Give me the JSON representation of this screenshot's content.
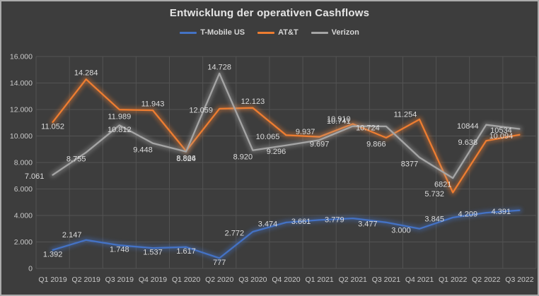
{
  "chart_data": {
    "type": "line",
    "title": "Entwicklung der operativen Cashflows",
    "categories": [
      "Q1 2019",
      "Q2 2019",
      "Q3 2019",
      "Q4 2019",
      "Q1 2020",
      "Q2 2020",
      "Q3 2020",
      "Q4 2020",
      "Q1 2021",
      "Q2 2021",
      "Q3 2021",
      "Q4 2021",
      "Q1 2022",
      "Q2 2022",
      "Q3 2022"
    ],
    "y_axis": {
      "min": 0,
      "max": 16000,
      "step": 2000,
      "tick_labels": [
        "0",
        "2.000",
        "4.000",
        "6.000",
        "8.000",
        "10.000",
        "12.000",
        "14.000",
        "16.000"
      ]
    },
    "grid": true,
    "legend_position": "top",
    "series": [
      {
        "name": "T-Mobile US",
        "color": "#4472C4",
        "values": [
          1392,
          2147,
          1748,
          1537,
          1617,
          777,
          2772,
          3474,
          3661,
          3779,
          3477,
          3000,
          3845,
          4209,
          4391
        ],
        "labels": [
          "1.392",
          "2.147",
          "1.748",
          "1.537",
          "1.617",
          "777",
          "2.772",
          "3.474",
          "3.661",
          "3.779",
          "3.477",
          "3.000",
          "3.845",
          "4.209",
          "4.391"
        ],
        "label_pos": [
          "c",
          "al",
          "c",
          "c",
          "c",
          "c",
          "l",
          "l",
          "l",
          "l",
          "l",
          "l",
          "l",
          "l",
          "l"
        ]
      },
      {
        "name": "AT&T",
        "color": "#ED7D31",
        "values": [
          11052,
          14284,
          11989,
          11943,
          8866,
          12059,
          12123,
          10065,
          9937,
          10910,
          9866,
          11254,
          5732,
          9638,
          10094
        ],
        "labels": [
          "11.052",
          "14.284",
          "11.989",
          "11.943",
          "8.866",
          "12.059",
          "12.123",
          "10.065",
          "9.937",
          "10.910",
          "9.866",
          "11.254",
          "5.732",
          "9.638",
          "10.094"
        ],
        "label_pos": [
          "c",
          "a",
          "b",
          "a",
          "b",
          "l",
          "a",
          "l",
          "al",
          "al",
          "bl",
          "al",
          "l",
          "l",
          "l"
        ]
      },
      {
        "name": "Verizon",
        "color": "#A5A5A5",
        "values": [
          7061,
          8755,
          10812,
          9448,
          8824,
          14728,
          8920,
          9296,
          9697,
          10741,
          10724,
          8377,
          6821,
          10844,
          10534
        ],
        "labels": [
          "7.061",
          "8.755",
          "10.812",
          "9.448",
          "8.824",
          "14.728",
          "8.920",
          "9.296",
          "9.697",
          "10.741",
          "10.724",
          "8377",
          "6821",
          "10844",
          "10534"
        ],
        "label_pos": [
          "l",
          "bl",
          "c",
          "bl",
          "b",
          "a",
          "bl",
          "bl",
          "c",
          "al",
          "l",
          "bl",
          "bl",
          "l",
          "l"
        ]
      }
    ],
    "colors": {
      "background": "#3D3D3D",
      "grid": "#535353",
      "axis_text": "#C9C9C9",
      "label_text": "#DCDCDC",
      "title_text": "#E6E6E6",
      "frame_border": "#ABABAB"
    }
  }
}
